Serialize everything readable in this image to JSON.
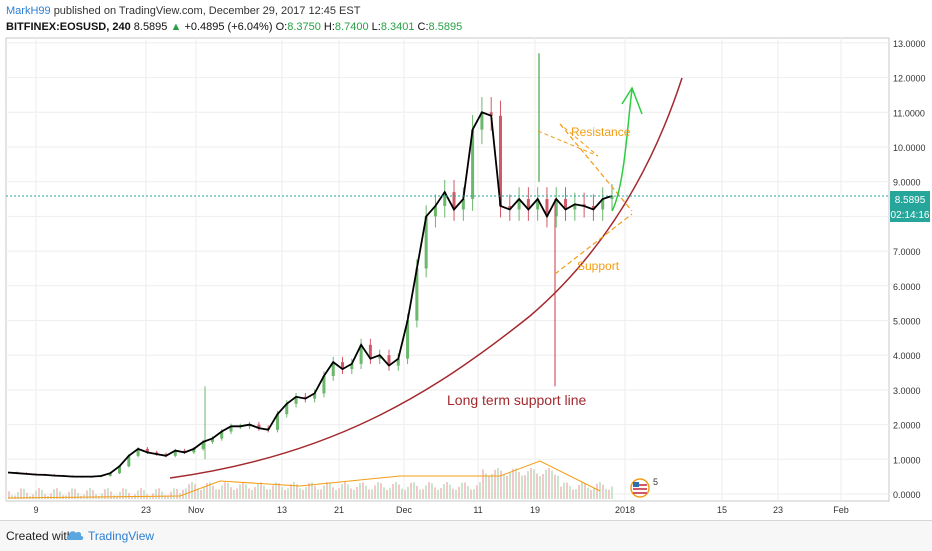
{
  "header": {
    "author": "MarkH99",
    "published": "published on TradingView.com, December 29, 2017 12:45 EST",
    "symbol": "BITFINEX:EOSUSD, 240",
    "last": "8.5895",
    "arrow": "▲",
    "change": "+0.4895 (+6.04%)",
    "open_label": "O:",
    "open": "8.3750",
    "high_label": "H:",
    "high": "8.7400",
    "low_label": "L:",
    "low": "8.3401",
    "close_label": "C:",
    "close": "8.5895"
  },
  "price_tag": {
    "value": "8.5895",
    "countdown": "02:14:16"
  },
  "annotations": {
    "resistance": "Resistance",
    "support": "Support",
    "long_term": "Long term support line",
    "events_count": "5"
  },
  "footer": {
    "created": "Created with",
    "brand": "TradingView"
  },
  "colors": {
    "candle_up": "#6bb76b",
    "candle_down": "#d15a69",
    "ma_line": "#000000",
    "support_curve": "#a3292e",
    "triangle": "#f39c12",
    "projection": "#2ecc40",
    "price_line": "#26a69a",
    "price_tag": "#26a69a",
    "volume_ma": "#f39c12"
  },
  "chart_data": {
    "type": "line",
    "symbol": "BITFINEX:EOSUSD",
    "interval": "240",
    "y_ticks": [
      "13.0000",
      "12.0000",
      "11.0000",
      "10.0000",
      "9.0000",
      "8.0000",
      "7.0000",
      "6.0000",
      "5.0000",
      "4.0000",
      "3.0000",
      "2.0000",
      "1.0000",
      "0.0000"
    ],
    "ylim": [
      -0.2,
      13.1
    ],
    "x_ticks": [
      "9",
      "23",
      "Nov",
      "13",
      "21",
      "Dec",
      "11",
      "19",
      "2018",
      "15",
      "23",
      "Feb"
    ],
    "series": [
      {
        "values": [
          0.62,
          0.6,
          0.58,
          0.56,
          0.55,
          0.53,
          0.52,
          0.5,
          0.5,
          0.5,
          0.52,
          0.6,
          0.8,
          1.1,
          1.3,
          1.2,
          1.15,
          1.1,
          1.25,
          1.2,
          1.3,
          1.5,
          1.6,
          1.8,
          1.95,
          1.95,
          2.0,
          1.9,
          1.85,
          2.3,
          2.6,
          2.8,
          2.75,
          2.9,
          3.4,
          3.8,
          3.6,
          3.75,
          4.3,
          3.9,
          4.0,
          3.7,
          3.9,
          5.0,
          6.5,
          8.0,
          8.3,
          8.7,
          8.2,
          8.5,
          10.5,
          11.0,
          10.9,
          8.3,
          8.2,
          8.5,
          8.2,
          8.5,
          8.0,
          8.5,
          8.2,
          8.35,
          8.3,
          8.2,
          8.5,
          8.59
        ]
      }
    ]
  }
}
